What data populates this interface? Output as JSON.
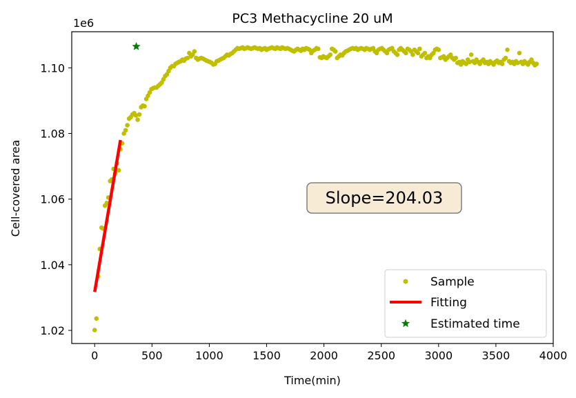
{
  "chart_data": {
    "type": "scatter",
    "title": "PC3 Methacycline 20 uM",
    "xlabel": "Time(min)",
    "ylabel": "Cell-covered area",
    "y_scale_label": "1e6",
    "xlim": [
      -200,
      4000
    ],
    "ylim": [
      1.016,
      1.111
    ],
    "x_ticks": [
      0,
      500,
      1000,
      1500,
      2000,
      2500,
      3000,
      3500,
      4000
    ],
    "x_tick_labels": [
      "0",
      "500",
      "1000",
      "1500",
      "2000",
      "2500",
      "3000",
      "3500",
      "4000"
    ],
    "y_ticks": [
      1.02,
      1.04,
      1.06,
      1.08,
      1.1
    ],
    "y_tick_labels": [
      "1.02",
      "1.04",
      "1.06",
      "1.08",
      "1.10"
    ],
    "annotation": "Slope=204.03",
    "legend_position": "lower-right",
    "grid": false,
    "series": [
      {
        "name": "Sample",
        "marker": "dot",
        "color": "#bfbf00",
        "points": [
          [
            0,
            1.0201
          ],
          [
            15,
            1.0236
          ],
          [
            30,
            1.0365
          ],
          [
            45,
            1.0448
          ],
          [
            60,
            1.0513
          ],
          [
            75,
            1.051
          ],
          [
            90,
            1.058
          ],
          [
            105,
            1.0588
          ],
          [
            120,
            1.0605
          ],
          [
            135,
            1.0655
          ],
          [
            150,
            1.066
          ],
          [
            165,
            1.0692
          ],
          [
            180,
            1.0678
          ],
          [
            195,
            1.071
          ],
          [
            210,
            1.0688
          ],
          [
            225,
            1.0752
          ],
          [
            240,
            1.077
          ],
          [
            255,
            1.08
          ],
          [
            270,
            1.081
          ],
          [
            285,
            1.0825
          ],
          [
            300,
            1.0845
          ],
          [
            315,
            1.085
          ],
          [
            330,
            1.0858
          ],
          [
            345,
            1.0862
          ],
          [
            360,
            1.0855
          ],
          [
            375,
            1.0842
          ],
          [
            390,
            1.0858
          ],
          [
            405,
            1.088
          ],
          [
            420,
            1.0885
          ],
          [
            435,
            1.0883
          ],
          [
            450,
            1.0905
          ],
          [
            465,
            1.0915
          ],
          [
            480,
            1.0925
          ],
          [
            495,
            1.0935
          ],
          [
            510,
            1.0938
          ],
          [
            525,
            1.094
          ],
          [
            540,
            1.094
          ],
          [
            555,
            1.0945
          ],
          [
            570,
            1.095
          ],
          [
            585,
            1.0955
          ],
          [
            600,
            1.0965
          ],
          [
            615,
            1.0975
          ],
          [
            630,
            1.098
          ],
          [
            645,
            1.099
          ],
          [
            660,
            1.1
          ],
          [
            675,
            1.1005
          ],
          [
            690,
            1.1005
          ],
          [
            705,
            1.1012
          ],
          [
            720,
            1.1015
          ],
          [
            735,
            1.1018
          ],
          [
            750,
            1.102
          ],
          [
            765,
            1.1025
          ],
          [
            780,
            1.1022
          ],
          [
            795,
            1.1028
          ],
          [
            810,
            1.103
          ],
          [
            825,
            1.1045
          ],
          [
            840,
            1.1035
          ],
          [
            855,
            1.104
          ],
          [
            870,
            1.105
          ],
          [
            885,
            1.103
          ],
          [
            900,
            1.1025
          ],
          [
            915,
            1.1028
          ],
          [
            930,
            1.103
          ],
          [
            945,
            1.1028
          ],
          [
            960,
            1.1025
          ],
          [
            975,
            1.1022
          ],
          [
            990,
            1.102
          ],
          [
            1005,
            1.1018
          ],
          [
            1020,
            1.1015
          ],
          [
            1035,
            1.101
          ],
          [
            1050,
            1.1012
          ],
          [
            1065,
            1.102
          ],
          [
            1080,
            1.1022
          ],
          [
            1095,
            1.1025
          ],
          [
            1110,
            1.1028
          ],
          [
            1125,
            1.103
          ],
          [
            1140,
            1.1035
          ],
          [
            1155,
            1.104
          ],
          [
            1170,
            1.1038
          ],
          [
            1185,
            1.1042
          ],
          [
            1200,
            1.1045
          ],
          [
            1215,
            1.105
          ],
          [
            1230,
            1.1055
          ],
          [
            1245,
            1.106
          ],
          [
            1260,
            1.1058
          ],
          [
            1275,
            1.106
          ],
          [
            1290,
            1.1062
          ],
          [
            1305,
            1.1058
          ],
          [
            1320,
            1.106
          ],
          [
            1335,
            1.1062
          ],
          [
            1350,
            1.106
          ],
          [
            1365,
            1.1058
          ],
          [
            1380,
            1.106
          ],
          [
            1395,
            1.1062
          ],
          [
            1410,
            1.106
          ],
          [
            1425,
            1.1058
          ],
          [
            1440,
            1.106
          ],
          [
            1455,
            1.1055
          ],
          [
            1470,
            1.1058
          ],
          [
            1485,
            1.106
          ],
          [
            1500,
            1.1055
          ],
          [
            1515,
            1.1058
          ],
          [
            1530,
            1.106
          ],
          [
            1545,
            1.1062
          ],
          [
            1560,
            1.106
          ],
          [
            1575,
            1.1058
          ],
          [
            1590,
            1.1062
          ],
          [
            1605,
            1.106
          ],
          [
            1620,
            1.1058
          ],
          [
            1635,
            1.1062
          ],
          [
            1650,
            1.106
          ],
          [
            1665,
            1.1058
          ],
          [
            1680,
            1.106
          ],
          [
            1695,
            1.1058
          ],
          [
            1710,
            1.1055
          ],
          [
            1725,
            1.1052
          ],
          [
            1740,
            1.105
          ],
          [
            1755,
            1.1055
          ],
          [
            1770,
            1.1058
          ],
          [
            1785,
            1.1055
          ],
          [
            1800,
            1.1052
          ],
          [
            1815,
            1.1058
          ],
          [
            1830,
            1.1055
          ],
          [
            1845,
            1.106
          ],
          [
            1860,
            1.1058
          ],
          [
            1875,
            1.1055
          ],
          [
            1890,
            1.1045
          ],
          [
            1905,
            1.1052
          ],
          [
            1920,
            1.1055
          ],
          [
            1935,
            1.106
          ],
          [
            1950,
            1.1058
          ],
          [
            1965,
            1.1032
          ],
          [
            1980,
            1.103
          ],
          [
            1995,
            1.1035
          ],
          [
            2010,
            1.1032
          ],
          [
            2025,
            1.103
          ],
          [
            2040,
            1.1035
          ],
          [
            2055,
            1.104
          ],
          [
            2070,
            1.1058
          ],
          [
            2085,
            1.1055
          ],
          [
            2100,
            1.105
          ],
          [
            2115,
            1.103
          ],
          [
            2130,
            1.1035
          ],
          [
            2145,
            1.104
          ],
          [
            2160,
            1.1038
          ],
          [
            2175,
            1.1045
          ],
          [
            2190,
            1.105
          ],
          [
            2205,
            1.1052
          ],
          [
            2220,
            1.1055
          ],
          [
            2235,
            1.1058
          ],
          [
            2250,
            1.106
          ],
          [
            2265,
            1.1058
          ],
          [
            2280,
            1.106
          ],
          [
            2295,
            1.1055
          ],
          [
            2310,
            1.1058
          ],
          [
            2325,
            1.106
          ],
          [
            2340,
            1.1058
          ],
          [
            2355,
            1.1055
          ],
          [
            2370,
            1.106
          ],
          [
            2385,
            1.1058
          ],
          [
            2400,
            1.1055
          ],
          [
            2415,
            1.1058
          ],
          [
            2430,
            1.106
          ],
          [
            2445,
            1.105
          ],
          [
            2460,
            1.1045
          ],
          [
            2475,
            1.1055
          ],
          [
            2490,
            1.1058
          ],
          [
            2505,
            1.106
          ],
          [
            2520,
            1.1055
          ],
          [
            2535,
            1.105
          ],
          [
            2550,
            1.1045
          ],
          [
            2565,
            1.1055
          ],
          [
            2580,
            1.1058
          ],
          [
            2595,
            1.106
          ],
          [
            2610,
            1.105
          ],
          [
            2625,
            1.1045
          ],
          [
            2640,
            1.104
          ],
          [
            2655,
            1.1055
          ],
          [
            2670,
            1.106
          ],
          [
            2685,
            1.1055
          ],
          [
            2700,
            1.105
          ],
          [
            2715,
            1.1045
          ],
          [
            2730,
            1.1058
          ],
          [
            2745,
            1.1055
          ],
          [
            2760,
            1.105
          ],
          [
            2775,
            1.104
          ],
          [
            2790,
            1.1055
          ],
          [
            2805,
            1.105
          ],
          [
            2820,
            1.1045
          ],
          [
            2835,
            1.1058
          ],
          [
            2850,
            1.1035
          ],
          [
            2865,
            1.104
          ],
          [
            2880,
            1.1045
          ],
          [
            2895,
            1.103
          ],
          [
            2910,
            1.1035
          ],
          [
            2925,
            1.103
          ],
          [
            2940,
            1.104
          ],
          [
            2955,
            1.1045
          ],
          [
            2970,
            1.1055
          ],
          [
            2985,
            1.1058
          ],
          [
            3000,
            1.1055
          ],
          [
            3015,
            1.103
          ],
          [
            3030,
            1.1032
          ],
          [
            3045,
            1.1035
          ],
          [
            3060,
            1.1025
          ],
          [
            3075,
            1.103
          ],
          [
            3090,
            1.1035
          ],
          [
            3105,
            1.104
          ],
          [
            3120,
            1.103
          ],
          [
            3135,
            1.1025
          ],
          [
            3150,
            1.103
          ],
          [
            3165,
            1.1015
          ],
          [
            3180,
            1.1018
          ],
          [
            3195,
            1.101
          ],
          [
            3210,
            1.102
          ],
          [
            3225,
            1.1015
          ],
          [
            3240,
            1.1012
          ],
          [
            3255,
            1.1025
          ],
          [
            3270,
            1.1018
          ],
          [
            3285,
            1.104
          ],
          [
            3300,
            1.102
          ],
          [
            3315,
            1.1015
          ],
          [
            3330,
            1.1025
          ],
          [
            3345,
            1.1018
          ],
          [
            3360,
            1.1012
          ],
          [
            3375,
            1.102
          ],
          [
            3390,
            1.1025
          ],
          [
            3405,
            1.1015
          ],
          [
            3420,
            1.1018
          ],
          [
            3435,
            1.1012
          ],
          [
            3450,
            1.102
          ],
          [
            3465,
            1.1015
          ],
          [
            3480,
            1.101
          ],
          [
            3495,
            1.1018
          ],
          [
            3510,
            1.1022
          ],
          [
            3525,
            1.1015
          ],
          [
            3540,
            1.1018
          ],
          [
            3555,
            1.1012
          ],
          [
            3570,
            1.1025
          ],
          [
            3585,
            1.103
          ],
          [
            3600,
            1.1055
          ],
          [
            3615,
            1.102
          ],
          [
            3630,
            1.1015
          ],
          [
            3645,
            1.1018
          ],
          [
            3660,
            1.1012
          ],
          [
            3675,
            1.102
          ],
          [
            3690,
            1.1015
          ],
          [
            3705,
            1.1045
          ],
          [
            3720,
            1.1018
          ],
          [
            3735,
            1.1012
          ],
          [
            3750,
            1.102
          ],
          [
            3765,
            1.1015
          ],
          [
            3780,
            1.101
          ],
          [
            3795,
            1.1018
          ],
          [
            3810,
            1.1025
          ],
          [
            3825,
            1.1015
          ],
          [
            3840,
            1.1008
          ],
          [
            3855,
            1.1012
          ]
        ]
      },
      {
        "name": "Fitting",
        "marker": "line",
        "color": "#ff0000",
        "points": [
          [
            0,
            1.0317
          ],
          [
            225,
            1.078
          ]
        ]
      },
      {
        "name": "Estimated time",
        "marker": "star",
        "color": "#008000",
        "points": [
          [
            363,
            1.1065
          ]
        ]
      }
    ]
  }
}
